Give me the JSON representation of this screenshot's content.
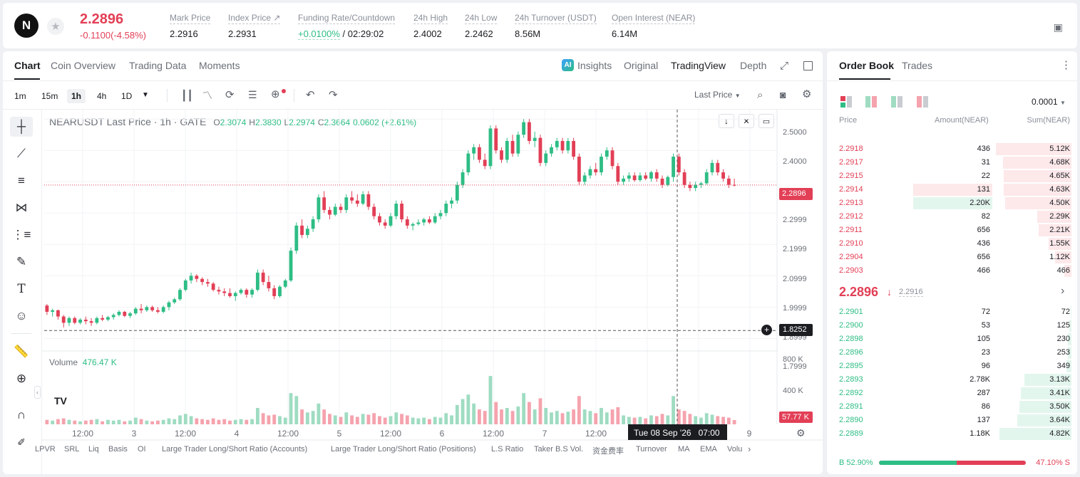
{
  "header": {
    "logo_letter": "N",
    "last_price": "2.2896",
    "change": "-0.1100(-4.58%)",
    "stats": [
      {
        "label": "Mark Price",
        "value": "2.2916"
      },
      {
        "label": "Index Price ↗",
        "value": "2.2931"
      },
      {
        "label": "Funding Rate/Countdown",
        "value_rate": "+0.0100%",
        "value_time": "/ 02:29:02"
      },
      {
        "label": "24h High",
        "value": "2.4002"
      },
      {
        "label": "24h Low",
        "value": "2.2462"
      },
      {
        "label": "24h Turnover (USDT)",
        "value": "8.56M"
      },
      {
        "label": "Open Interest (NEAR)",
        "value": "6.14M"
      }
    ]
  },
  "chart_tabs": [
    "Chart",
    "Coin Overview",
    "Trading Data",
    "Moments"
  ],
  "view_tabs": {
    "insights": "Insights",
    "original": "Original",
    "tradingview": "TradingView",
    "depth": "Depth"
  },
  "timeframes": [
    "1m",
    "15m",
    "1h",
    "4h",
    "1D"
  ],
  "price_source": "Last Price",
  "legend": {
    "symbol": "NEARUSDT Last Price · 1h · GATE",
    "open_label": "O",
    "open": "2.3074",
    "high_label": "H",
    "high": "2.3830",
    "low_label": "L",
    "low": "2.2974",
    "close_label": "C",
    "close": "2.3664",
    "change": "0.0602 (+2.61%)"
  },
  "volume_legend": {
    "label": "Volume",
    "value": "476.47 K"
  },
  "price_axis": [
    "2.5000",
    "2.4000",
    "2.2999",
    "2.1999",
    "2.0999",
    "1.9999",
    "1.8999",
    "1.7999"
  ],
  "volume_axis": [
    "800 K",
    "400 K"
  ],
  "current_price_tag": "2.2896",
  "crosshair_price_tag": "1.8252",
  "volume_tag": "57.77 K",
  "crosshair_time": "Tue 08 Sep '26   07:00",
  "time_axis": [
    "12:00",
    "3",
    "12:00",
    "4",
    "12:00",
    "5",
    "12:00",
    "6",
    "12:00",
    "7",
    "12:00",
    "9"
  ],
  "indicators": [
    "LPVR",
    "SRL",
    "Liq",
    "Basis",
    "OI",
    "Large Trader Long/Short Ratio (Accounts)",
    "Large Trader Long/Short Ratio (Positions)",
    "L.S Ratio",
    "Taker B.S Vol.",
    "资金费率",
    "Turnover",
    "MA",
    "EMA",
    "Volu"
  ],
  "chart_data": {
    "type": "candlestick",
    "interval": "1h",
    "ylim": [
      1.76,
      2.53
    ],
    "volume_ylim": [
      0,
      900000
    ],
    "candles": [
      [
        1.905,
        1.91,
        1.875,
        1.885,
        60000,
        "d"
      ],
      [
        1.885,
        1.895,
        1.87,
        1.89,
        50000,
        "u"
      ],
      [
        1.89,
        1.892,
        1.86,
        1.87,
        70000,
        "d"
      ],
      [
        1.87,
        1.875,
        1.835,
        1.85,
        80000,
        "d"
      ],
      [
        1.85,
        1.87,
        1.84,
        1.865,
        60000,
        "u"
      ],
      [
        1.865,
        1.87,
        1.845,
        1.85,
        50000,
        "d"
      ],
      [
        1.85,
        1.865,
        1.845,
        1.86,
        40000,
        "u"
      ],
      [
        1.86,
        1.87,
        1.845,
        1.855,
        50000,
        "d"
      ],
      [
        1.855,
        1.865,
        1.84,
        1.85,
        60000,
        "d"
      ],
      [
        1.85,
        1.87,
        1.845,
        1.865,
        70000,
        "u"
      ],
      [
        1.865,
        1.875,
        1.855,
        1.86,
        40000,
        "d"
      ],
      [
        1.86,
        1.872,
        1.855,
        1.868,
        60000,
        "u"
      ],
      [
        1.868,
        1.88,
        1.86,
        1.875,
        50000,
        "u"
      ],
      [
        1.875,
        1.89,
        1.87,
        1.885,
        60000,
        "u"
      ],
      [
        1.885,
        1.888,
        1.868,
        1.872,
        40000,
        "d"
      ],
      [
        1.872,
        1.885,
        1.865,
        1.88,
        50000,
        "u"
      ],
      [
        1.88,
        1.9,
        1.875,
        1.895,
        90000,
        "u"
      ],
      [
        1.895,
        1.91,
        1.88,
        1.89,
        70000,
        "d"
      ],
      [
        1.89,
        1.905,
        1.885,
        1.9,
        50000,
        "u"
      ],
      [
        1.9,
        1.905,
        1.885,
        1.89,
        40000,
        "d"
      ],
      [
        1.89,
        1.9,
        1.88,
        1.885,
        50000,
        "d"
      ],
      [
        1.885,
        1.905,
        1.88,
        1.9,
        60000,
        "u"
      ],
      [
        1.9,
        1.92,
        1.89,
        1.915,
        80000,
        "u"
      ],
      [
        1.915,
        1.93,
        1.91,
        1.925,
        70000,
        "u"
      ],
      [
        1.925,
        1.96,
        1.92,
        1.955,
        120000,
        "u"
      ],
      [
        1.955,
        1.99,
        1.95,
        1.985,
        140000,
        "u"
      ],
      [
        1.985,
        2.01,
        1.975,
        2.0,
        110000,
        "u"
      ],
      [
        2.0,
        2.005,
        1.98,
        1.99,
        80000,
        "d"
      ],
      [
        1.99,
        1.995,
        1.97,
        1.98,
        70000,
        "d"
      ],
      [
        1.98,
        1.99,
        1.965,
        1.975,
        60000,
        "d"
      ],
      [
        1.975,
        1.98,
        1.95,
        1.955,
        80000,
        "d"
      ],
      [
        1.955,
        1.965,
        1.94,
        1.95,
        60000,
        "d"
      ],
      [
        1.95,
        1.96,
        1.935,
        1.945,
        70000,
        "d"
      ],
      [
        1.945,
        1.96,
        1.93,
        1.935,
        50000,
        "d"
      ],
      [
        1.935,
        1.95,
        1.92,
        1.945,
        60000,
        "u"
      ],
      [
        1.945,
        1.96,
        1.94,
        1.955,
        70000,
        "u"
      ],
      [
        1.955,
        1.96,
        1.93,
        1.94,
        60000,
        "d"
      ],
      [
        1.94,
        1.96,
        1.93,
        1.955,
        70000,
        "u"
      ],
      [
        1.955,
        2.02,
        1.95,
        2.01,
        220000,
        "u"
      ],
      [
        2.01,
        2.02,
        1.97,
        1.98,
        150000,
        "d"
      ],
      [
        1.98,
        2.0,
        1.95,
        1.96,
        120000,
        "d"
      ],
      [
        1.96,
        1.97,
        1.925,
        1.935,
        130000,
        "d"
      ],
      [
        1.935,
        1.97,
        1.93,
        1.965,
        110000,
        "u"
      ],
      [
        1.965,
        1.99,
        1.96,
        1.985,
        90000,
        "u"
      ],
      [
        1.985,
        2.09,
        1.98,
        2.08,
        420000,
        "u"
      ],
      [
        2.08,
        2.17,
        2.07,
        2.16,
        380000,
        "u"
      ],
      [
        2.16,
        2.18,
        2.12,
        2.13,
        200000,
        "d"
      ],
      [
        2.13,
        2.16,
        2.12,
        2.15,
        160000,
        "u"
      ],
      [
        2.15,
        2.19,
        2.14,
        2.18,
        180000,
        "u"
      ],
      [
        2.18,
        2.26,
        2.17,
        2.25,
        280000,
        "u"
      ],
      [
        2.25,
        2.27,
        2.2,
        2.21,
        200000,
        "d"
      ],
      [
        2.21,
        2.22,
        2.18,
        2.195,
        140000,
        "d"
      ],
      [
        2.195,
        2.23,
        2.19,
        2.22,
        120000,
        "u"
      ],
      [
        2.22,
        2.23,
        2.2,
        2.21,
        100000,
        "d"
      ],
      [
        2.21,
        2.26,
        2.2,
        2.25,
        160000,
        "u"
      ],
      [
        2.25,
        2.27,
        2.23,
        2.24,
        120000,
        "d"
      ],
      [
        2.24,
        2.26,
        2.22,
        2.23,
        100000,
        "d"
      ],
      [
        2.23,
        2.27,
        2.225,
        2.26,
        140000,
        "u"
      ],
      [
        2.26,
        2.27,
        2.21,
        2.22,
        130000,
        "d"
      ],
      [
        2.22,
        2.23,
        2.18,
        2.19,
        150000,
        "d"
      ],
      [
        2.19,
        2.2,
        2.16,
        2.17,
        110000,
        "d"
      ],
      [
        2.17,
        2.18,
        2.15,
        2.16,
        90000,
        "d"
      ],
      [
        2.16,
        2.2,
        2.155,
        2.19,
        110000,
        "u"
      ],
      [
        2.19,
        2.24,
        2.18,
        2.23,
        160000,
        "u"
      ],
      [
        2.23,
        2.24,
        2.17,
        2.18,
        140000,
        "d"
      ],
      [
        2.18,
        2.19,
        2.15,
        2.16,
        120000,
        "d"
      ],
      [
        2.16,
        2.17,
        2.145,
        2.165,
        90000,
        "u"
      ],
      [
        2.165,
        2.18,
        2.16,
        2.17,
        80000,
        "u"
      ],
      [
        2.17,
        2.185,
        2.16,
        2.18,
        90000,
        "u"
      ],
      [
        2.18,
        2.19,
        2.165,
        2.17,
        70000,
        "d"
      ],
      [
        2.17,
        2.2,
        2.165,
        2.19,
        100000,
        "u"
      ],
      [
        2.19,
        2.21,
        2.18,
        2.2,
        90000,
        "u"
      ],
      [
        2.2,
        2.24,
        2.19,
        2.23,
        150000,
        "u"
      ],
      [
        2.23,
        2.25,
        2.215,
        2.24,
        120000,
        "u"
      ],
      [
        2.24,
        2.3,
        2.23,
        2.29,
        260000,
        "u"
      ],
      [
        2.29,
        2.34,
        2.28,
        2.33,
        340000,
        "u"
      ],
      [
        2.33,
        2.4,
        2.32,
        2.39,
        400000,
        "u"
      ],
      [
        2.39,
        2.42,
        2.37,
        2.41,
        280000,
        "u"
      ],
      [
        2.41,
        2.42,
        2.36,
        2.37,
        200000,
        "d"
      ],
      [
        2.37,
        2.39,
        2.34,
        2.35,
        180000,
        "d"
      ],
      [
        2.35,
        2.48,
        2.34,
        2.47,
        650000,
        "u"
      ],
      [
        2.47,
        2.48,
        2.39,
        2.4,
        300000,
        "d"
      ],
      [
        2.4,
        2.41,
        2.36,
        2.37,
        200000,
        "d"
      ],
      [
        2.37,
        2.44,
        2.36,
        2.43,
        220000,
        "u"
      ],
      [
        2.43,
        2.45,
        2.38,
        2.39,
        180000,
        "d"
      ],
      [
        2.39,
        2.46,
        2.38,
        2.45,
        240000,
        "u"
      ],
      [
        2.45,
        2.5,
        2.44,
        2.49,
        420000,
        "u"
      ],
      [
        2.49,
        2.5,
        2.42,
        2.43,
        300000,
        "d"
      ],
      [
        2.43,
        2.46,
        2.41,
        2.44,
        200000,
        "u"
      ],
      [
        2.44,
        2.45,
        2.35,
        2.36,
        350000,
        "d"
      ],
      [
        2.36,
        2.4,
        2.35,
        2.39,
        220000,
        "u"
      ],
      [
        2.39,
        2.42,
        2.38,
        2.41,
        160000,
        "u"
      ],
      [
        2.41,
        2.44,
        2.4,
        2.43,
        180000,
        "u"
      ],
      [
        2.43,
        2.44,
        2.39,
        2.4,
        150000,
        "d"
      ],
      [
        2.4,
        2.44,
        2.39,
        2.43,
        170000,
        "u"
      ],
      [
        2.43,
        2.44,
        2.37,
        2.38,
        200000,
        "d"
      ],
      [
        2.38,
        2.39,
        2.29,
        2.3,
        380000,
        "d"
      ],
      [
        2.3,
        2.33,
        2.29,
        2.32,
        200000,
        "u"
      ],
      [
        2.32,
        2.35,
        2.31,
        2.34,
        180000,
        "u"
      ],
      [
        2.34,
        2.36,
        2.32,
        2.33,
        150000,
        "d"
      ],
      [
        2.33,
        2.39,
        2.32,
        2.38,
        220000,
        "u"
      ],
      [
        2.38,
        2.41,
        2.37,
        2.4,
        160000,
        "u"
      ],
      [
        2.4,
        2.41,
        2.34,
        2.35,
        200000,
        "d"
      ],
      [
        2.35,
        2.36,
        2.29,
        2.3,
        230000,
        "d"
      ],
      [
        2.3,
        2.32,
        2.29,
        2.31,
        120000,
        "u"
      ],
      [
        2.31,
        2.33,
        2.3,
        2.32,
        100000,
        "u"
      ],
      [
        2.32,
        2.33,
        2.3,
        2.305,
        90000,
        "d"
      ],
      [
        2.305,
        2.33,
        2.3,
        2.32,
        100000,
        "u"
      ],
      [
        2.32,
        2.33,
        2.305,
        2.31,
        80000,
        "d"
      ],
      [
        2.31,
        2.335,
        2.3,
        2.33,
        120000,
        "u"
      ],
      [
        2.33,
        2.34,
        2.3,
        2.31,
        110000,
        "d"
      ],
      [
        2.31,
        2.32,
        2.28,
        2.29,
        140000,
        "d"
      ],
      [
        2.29,
        2.32,
        2.285,
        2.315,
        120000,
        "u"
      ],
      [
        2.315,
        2.39,
        2.3,
        2.38,
        380000,
        "u"
      ],
      [
        2.38,
        2.39,
        2.32,
        2.33,
        200000,
        "d"
      ],
      [
        2.33,
        2.34,
        2.28,
        2.29,
        180000,
        "d"
      ],
      [
        2.29,
        2.3,
        2.27,
        2.28,
        140000,
        "d"
      ],
      [
        2.28,
        2.3,
        2.27,
        2.29,
        110000,
        "u"
      ],
      [
        2.29,
        2.3,
        2.28,
        2.295,
        90000,
        "u"
      ],
      [
        2.295,
        2.34,
        2.29,
        2.33,
        150000,
        "u"
      ],
      [
        2.33,
        2.37,
        2.32,
        2.36,
        130000,
        "u"
      ],
      [
        2.36,
        2.37,
        2.32,
        2.33,
        110000,
        "d"
      ],
      [
        2.33,
        2.34,
        2.3,
        2.31,
        100000,
        "d"
      ],
      [
        2.31,
        2.32,
        2.28,
        2.29,
        90000,
        "d"
      ],
      [
        2.29,
        2.31,
        2.285,
        2.2896,
        57770,
        "d"
      ]
    ]
  },
  "order_book": {
    "tabs": [
      "Order Book",
      "Trades"
    ],
    "precision": "0.0001",
    "headers": [
      "Price",
      "Amount(NEAR)",
      "Sum(NEAR)"
    ],
    "asks": [
      {
        "price": "2.2918",
        "amount": "436",
        "sum": "5.12K",
        "depth": 1.0
      },
      {
        "price": "2.2917",
        "amount": "31",
        "sum": "4.68K",
        "depth": 0.91
      },
      {
        "price": "2.2915",
        "amount": "22",
        "sum": "4.65K",
        "depth": 0.9
      },
      {
        "price": "2.2914",
        "amount": "131",
        "sum": "4.63K",
        "depth": 0.9,
        "highlight": "sell"
      },
      {
        "price": "2.2913",
        "amount": "2.20K",
        "sum": "4.50K",
        "depth": 0.88,
        "highlight": "buy"
      },
      {
        "price": "2.2912",
        "amount": "82",
        "sum": "2.29K",
        "depth": 0.45
      },
      {
        "price": "2.2911",
        "amount": "656",
        "sum": "2.21K",
        "depth": 0.43
      },
      {
        "price": "2.2910",
        "amount": "436",
        "sum": "1.55K",
        "depth": 0.3
      },
      {
        "price": "2.2904",
        "amount": "656",
        "sum": "1.12K",
        "depth": 0.22
      },
      {
        "price": "2.2903",
        "amount": "466",
        "sum": "466",
        "depth": 0.09
      }
    ],
    "mid_price": "2.2896",
    "mid_mark": "2.2916",
    "bids": [
      {
        "price": "2.2901",
        "amount": "72",
        "sum": "72",
        "depth": 0.01
      },
      {
        "price": "2.2900",
        "amount": "53",
        "sum": "125",
        "depth": 0.03
      },
      {
        "price": "2.2898",
        "amount": "105",
        "sum": "230",
        "depth": 0.05
      },
      {
        "price": "2.2896",
        "amount": "23",
        "sum": "253",
        "depth": 0.05
      },
      {
        "price": "2.2895",
        "amount": "96",
        "sum": "349",
        "depth": 0.07
      },
      {
        "price": "2.2893",
        "amount": "2.78K",
        "sum": "3.13K",
        "depth": 0.62
      },
      {
        "price": "2.2892",
        "amount": "287",
        "sum": "3.41K",
        "depth": 0.67
      },
      {
        "price": "2.2891",
        "amount": "86",
        "sum": "3.50K",
        "depth": 0.69
      },
      {
        "price": "2.2890",
        "amount": "137",
        "sum": "3.64K",
        "depth": 0.72
      },
      {
        "price": "2.2889",
        "amount": "1.18K",
        "sum": "4.82K",
        "depth": 0.95
      }
    ],
    "buy_ratio": "B 52.90%",
    "sell_ratio": "47.10% S",
    "buy_fraction": 0.529
  },
  "colors": {
    "up": "#2ebd85",
    "down": "#e23f56",
    "up_bg": "#e3f6ee",
    "down_bg": "#fde8ea"
  }
}
